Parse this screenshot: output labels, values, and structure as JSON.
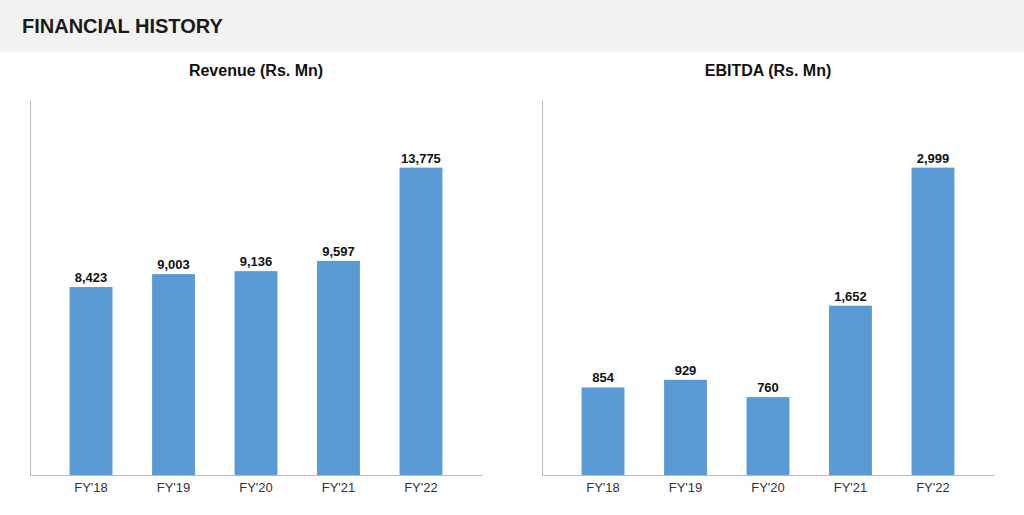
{
  "title": "FINANCIAL HISTORY",
  "chart_data": [
    {
      "type": "bar",
      "title": "Revenue (Rs. Mn)",
      "categories": [
        "FY'18",
        "FY'19",
        "FY'20",
        "FY'21",
        "FY'22"
      ],
      "values": [
        8423,
        9003,
        9136,
        9597,
        13775
      ],
      "value_labels": [
        "8,423",
        "9,003",
        "9,136",
        "9,597",
        "13,775"
      ],
      "color": "#5b9bd5",
      "ylim": [
        0,
        16805.5
      ],
      "data_labels": true,
      "tick_labels": "x",
      "grid": false
    },
    {
      "type": "bar",
      "title": "EBITDA (Rs. Mn)",
      "categories": [
        "FY'18",
        "FY'19",
        "FY'20",
        "FY'21",
        "FY'22"
      ],
      "values": [
        854,
        929,
        760,
        1652,
        2999
      ],
      "value_labels": [
        "854",
        "929",
        "760",
        "1,652",
        "2,999"
      ],
      "color": "#5b9bd5",
      "ylim": [
        0,
        3658.78
      ],
      "data_labels": true,
      "tick_labels": "x",
      "grid": false
    }
  ]
}
